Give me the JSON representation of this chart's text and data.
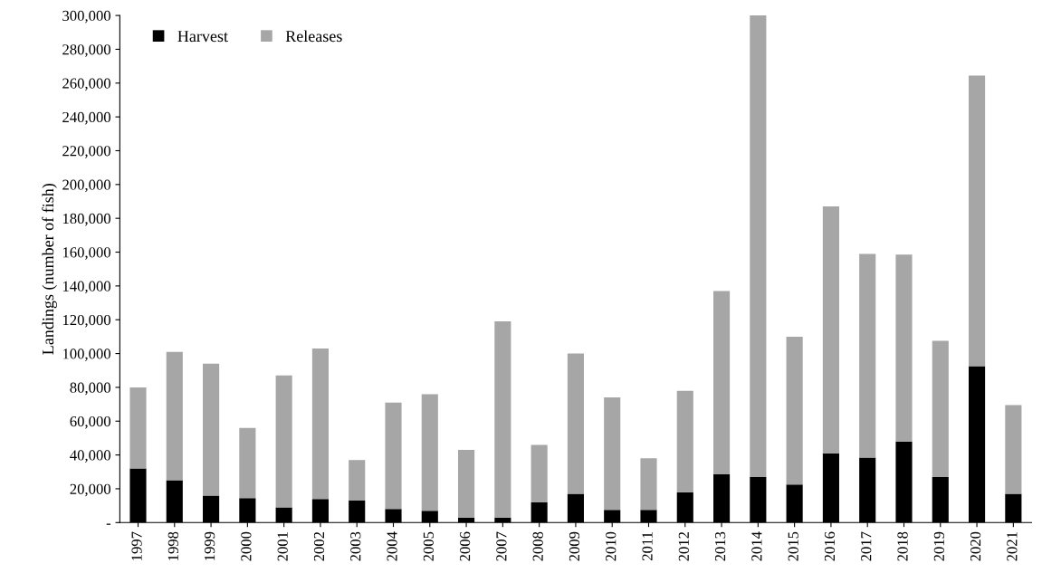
{
  "chart_data": {
    "type": "bar",
    "stacked": true,
    "ylabel": "Landings (number of fish)",
    "categories": [
      "1997",
      "1998",
      "1999",
      "2000",
      "2001",
      "2002",
      "2003",
      "2004",
      "2005",
      "2006",
      "2007",
      "2008",
      "2009",
      "2010",
      "2011",
      "2012",
      "2013",
      "2014",
      "2015",
      "2016",
      "2017",
      "2018",
      "2019",
      "2020",
      "2021"
    ],
    "series": [
      {
        "name": "Harvest",
        "color": "#000000",
        "values": [
          32000,
          25000,
          16000,
          14500,
          9000,
          14000,
          13000,
          8000,
          7000,
          3000,
          3000,
          12000,
          17000,
          7500,
          7500,
          18000,
          28500,
          27000,
          22500,
          41000,
          38500,
          48000,
          27000,
          92500,
          17000
        ]
      },
      {
        "name": "Releases",
        "color": "#a6a6a6",
        "values": [
          48000,
          76000,
          78000,
          41500,
          78000,
          89000,
          24000,
          63000,
          69000,
          40000,
          116000,
          34000,
          83000,
          66500,
          30500,
          60000,
          108500,
          273000,
          87500,
          146000,
          120500,
          110500,
          80500,
          172000,
          52500
        ]
      }
    ],
    "ylim": [
      0,
      300000
    ],
    "yticks": [
      {
        "value": 0,
        "label": "-"
      },
      {
        "value": 20000,
        "label": "20,000"
      },
      {
        "value": 40000,
        "label": "40,000"
      },
      {
        "value": 60000,
        "label": "60,000"
      },
      {
        "value": 80000,
        "label": "80,000"
      },
      {
        "value": 100000,
        "label": "100,000"
      },
      {
        "value": 120000,
        "label": "120,000"
      },
      {
        "value": 140000,
        "label": "140,000"
      },
      {
        "value": 160000,
        "label": "160,000"
      },
      {
        "value": 180000,
        "label": "180,000"
      },
      {
        "value": 200000,
        "label": "200,000"
      },
      {
        "value": 220000,
        "label": "220,000"
      },
      {
        "value": 240000,
        "label": "240,000"
      },
      {
        "value": 260000,
        "label": "260,000"
      },
      {
        "value": 280000,
        "label": "280,000"
      },
      {
        "value": 300000,
        "label": "300,000"
      }
    ],
    "grid": false,
    "legend": "top left"
  }
}
